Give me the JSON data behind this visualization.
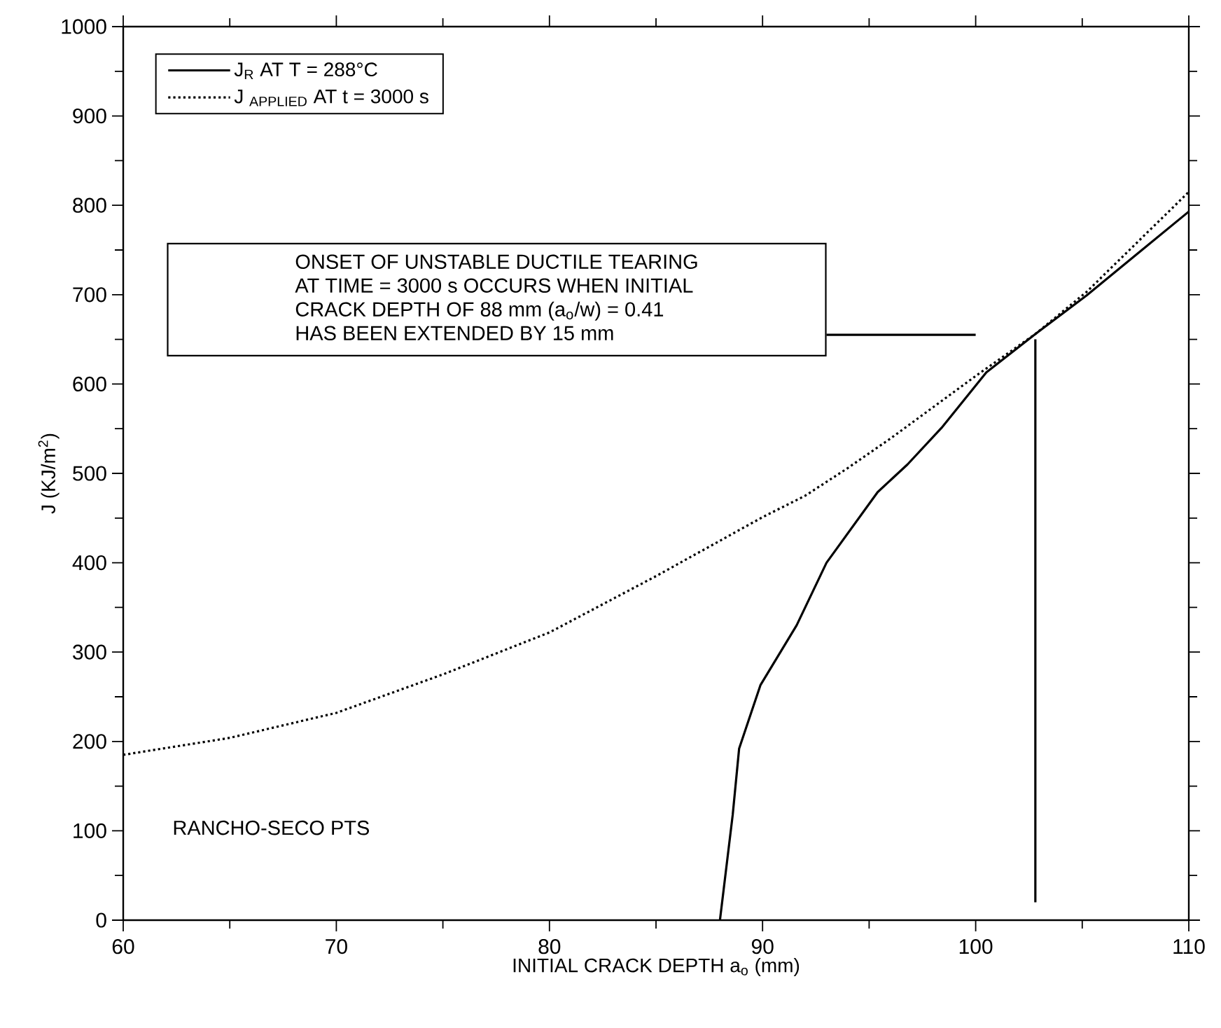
{
  "chart_data": {
    "type": "line",
    "xlabel": "INITIAL CRACK DEPTH a$_{o}$ (mm)",
    "ylabel": "J (KJ/m$^{2}$)",
    "xlim": [
      60,
      110
    ],
    "ylim": [
      0,
      1000
    ],
    "xticks": [
      60,
      70,
      80,
      90,
      100,
      110
    ],
    "yticks": [
      0,
      100,
      200,
      300,
      400,
      500,
      600,
      700,
      800,
      900,
      1000
    ],
    "legend": "top left",
    "grid": false,
    "series": [
      {
        "name": "J$_{R}$  AT  T = 288°C",
        "color": "#000000",
        "line_style": "solid",
        "x": [
          88.0,
          88.6,
          88.9,
          89.9,
          91.6,
          93.0,
          95.4,
          96.8,
          98.4,
          100.5,
          102.8,
          105.2,
          107.6,
          110
        ],
        "values": [
          0,
          118,
          192,
          263,
          330,
          400,
          479,
          510,
          551,
          613,
          656,
          699,
          746,
          793
        ]
      },
      {
        "name": "J $_{APPLIED}$  AT  t = 3000 s",
        "color": "#000000",
        "line_style": "dotted",
        "x": [
          60,
          65,
          70,
          75,
          80,
          85,
          90,
          92,
          94,
          96,
          100,
          102.8,
          105.2,
          110
        ],
        "values": [
          185,
          204,
          232,
          275,
          322,
          385,
          451,
          475,
          506,
          539,
          609,
          656,
          703,
          815
        ]
      },
      {
        "color": "#000000",
        "line_style": "solid",
        "x": [
          102.8,
          102.8
        ],
        "values": [
          20,
          650
        ]
      },
      {
        "color": "#000000",
        "line_style": "solid",
        "x": [
          93,
          100
        ],
        "values": [
          655,
          655
        ]
      }
    ],
    "annotations": [
      "ONSET OF UNSTABLE DUCTILE TEARING",
      "AT TIME = 3000 s OCCURS WHEN INITIAL",
      "CRACK DEPTH OF 88 mm (a$_{o}$/w) = 0.41",
      "HAS BEEN EXTENDED BY 15 mm",
      "RANCHO-SECO PTS"
    ]
  }
}
